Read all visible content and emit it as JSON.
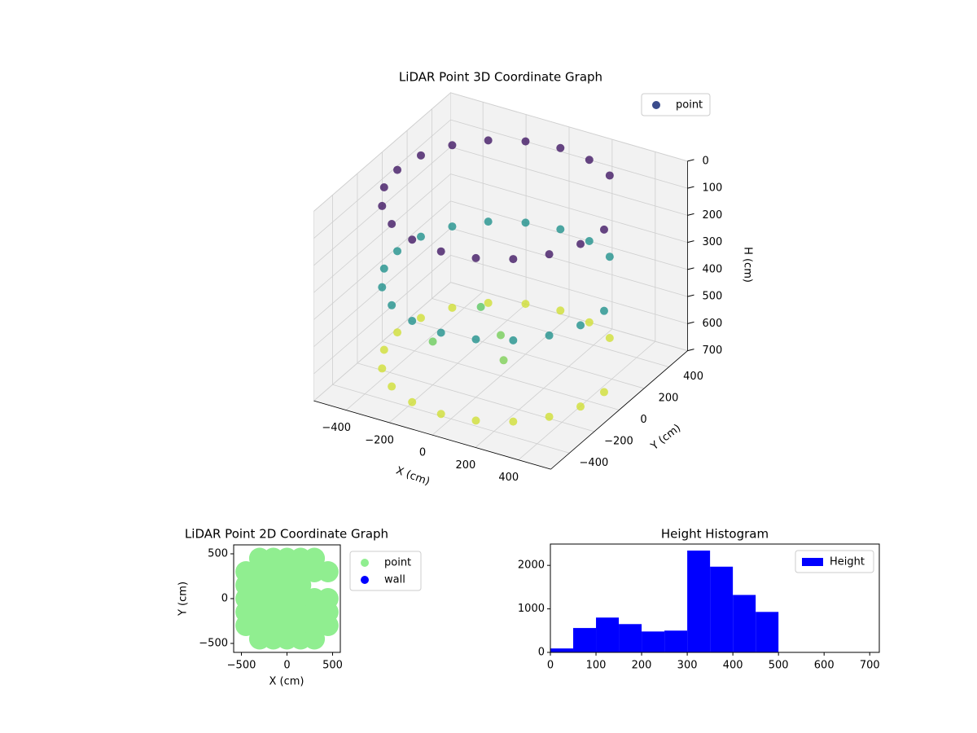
{
  "chart_data": [
    {
      "type": "scatter3d",
      "title": "LiDAR Point 3D Coordinate Graph",
      "xlabel": "X (cm)",
      "ylabel": "Y (cm)",
      "zlabel": "H (cm)",
      "series": [
        {
          "name": "point",
          "color": "#3b4c8c",
          "colormap": "viridis",
          "x": [
            480,
            282,
            148,
            0,
            -148,
            -282,
            -388,
            -456,
            -480,
            -456,
            -388,
            -282,
            -148,
            0,
            148,
            282,
            388,
            456,
            480,
            282,
            148,
            0,
            -148,
            -282,
            -388,
            -456,
            -480,
            -456,
            -388,
            -282,
            -148,
            0,
            148,
            282,
            388,
            456,
            480,
            282,
            148,
            0,
            -148,
            -282,
            -388,
            -456,
            -480,
            -456,
            -388,
            -282,
            -148,
            0,
            148,
            282,
            388,
            456,
            0,
            -150,
            100,
            -200
          ],
          "y": [
            0,
            388,
            456,
            480,
            456,
            388,
            282,
            148,
            0,
            -148,
            -282,
            -388,
            -456,
            -480,
            -456,
            -388,
            -282,
            -148,
            0,
            388,
            456,
            480,
            456,
            388,
            282,
            148,
            0,
            -148,
            -282,
            -388,
            -456,
            -480,
            -456,
            -388,
            -282,
            -148,
            0,
            388,
            456,
            480,
            456,
            388,
            282,
            148,
            0,
            -148,
            -282,
            -388,
            -456,
            -480,
            -456,
            -388,
            -282,
            -148,
            0,
            100,
            -150,
            -200
          ],
          "z": [
            50,
            50,
            50,
            50,
            50,
            50,
            50,
            50,
            50,
            50,
            50,
            50,
            50,
            50,
            50,
            50,
            50,
            50,
            350,
            350,
            350,
            350,
            350,
            350,
            350,
            350,
            350,
            350,
            350,
            350,
            350,
            350,
            350,
            350,
            350,
            350,
            650,
            650,
            650,
            650,
            650,
            650,
            650,
            650,
            650,
            650,
            650,
            650,
            650,
            650,
            650,
            650,
            650,
            650,
            550,
            520,
            560,
            540
          ]
        }
      ],
      "xlim": [
        -550,
        550
      ],
      "ylim": [
        -550,
        550
      ],
      "zlim": [
        0,
        700
      ],
      "zinvert": true,
      "xticks": [
        {
          "value": -400,
          "label": "−400"
        },
        {
          "value": -200,
          "label": "−200"
        },
        0,
        200,
        400
      ],
      "yticks": [
        {
          "value": -400,
          "label": "−400"
        },
        {
          "value": -200,
          "label": "−200"
        },
        0,
        200,
        400
      ],
      "zticks": [
        0,
        100,
        200,
        300,
        400,
        500,
        600,
        700
      ],
      "legend": "upper right",
      "grid": true
    },
    {
      "type": "scatter",
      "title": "LiDAR Point 2D Coordinate Graph",
      "xlabel": "X (cm)",
      "ylabel": "Y (cm)",
      "series": [
        {
          "name": "point",
          "color": "#90ee90",
          "x": [
            -450,
            -450,
            -450,
            -450,
            -450,
            -300,
            -300,
            -300,
            -300,
            -300,
            -300,
            -300,
            -150,
            -150,
            -150,
            -150,
            -150,
            -150,
            -150,
            0,
            0,
            0,
            0,
            0,
            0,
            0,
            150,
            150,
            150,
            150,
            150,
            150,
            150,
            300,
            300,
            300,
            300,
            300,
            300,
            450,
            450,
            450,
            450
          ],
          "y": [
            -300,
            -150,
            0,
            150,
            300,
            -450,
            -300,
            -150,
            0,
            150,
            300,
            450,
            -450,
            -300,
            -150,
            0,
            150,
            300,
            450,
            -450,
            -300,
            -150,
            0,
            150,
            300,
            450,
            -450,
            -300,
            -150,
            0,
            150,
            300,
            450,
            -450,
            -300,
            -150,
            0,
            300,
            450,
            -300,
            -150,
            0,
            300
          ]
        },
        {
          "name": "wall",
          "color": "#0000ff",
          "x": [],
          "y": []
        }
      ],
      "xlim": [
        -585,
        585
      ],
      "ylim": [
        -600,
        600
      ],
      "xticks": [
        {
          "value": -500,
          "label": "−500"
        },
        0,
        500
      ],
      "yticks": [
        {
          "value": -500,
          "label": "−500"
        },
        0,
        500
      ],
      "legend": "outside right"
    },
    {
      "type": "histogram",
      "title": "Height Histogram",
      "bins": [
        0,
        50,
        100,
        150,
        200,
        250,
        300,
        350,
        400,
        450,
        500,
        550,
        600,
        650,
        700
      ],
      "series": [
        {
          "name": "Height",
          "color": "#0000ff",
          "values": [
            90,
            560,
            800,
            650,
            480,
            500,
            2340,
            1970,
            1320,
            930,
            0,
            0,
            0,
            0
          ]
        }
      ],
      "xlim": [
        0,
        721
      ],
      "ylim": [
        0,
        2490
      ],
      "xticks": [
        0,
        100,
        200,
        300,
        400,
        500,
        600,
        700
      ],
      "yticks": [
        0,
        1000,
        2000
      ],
      "legend": "upper right"
    }
  ]
}
